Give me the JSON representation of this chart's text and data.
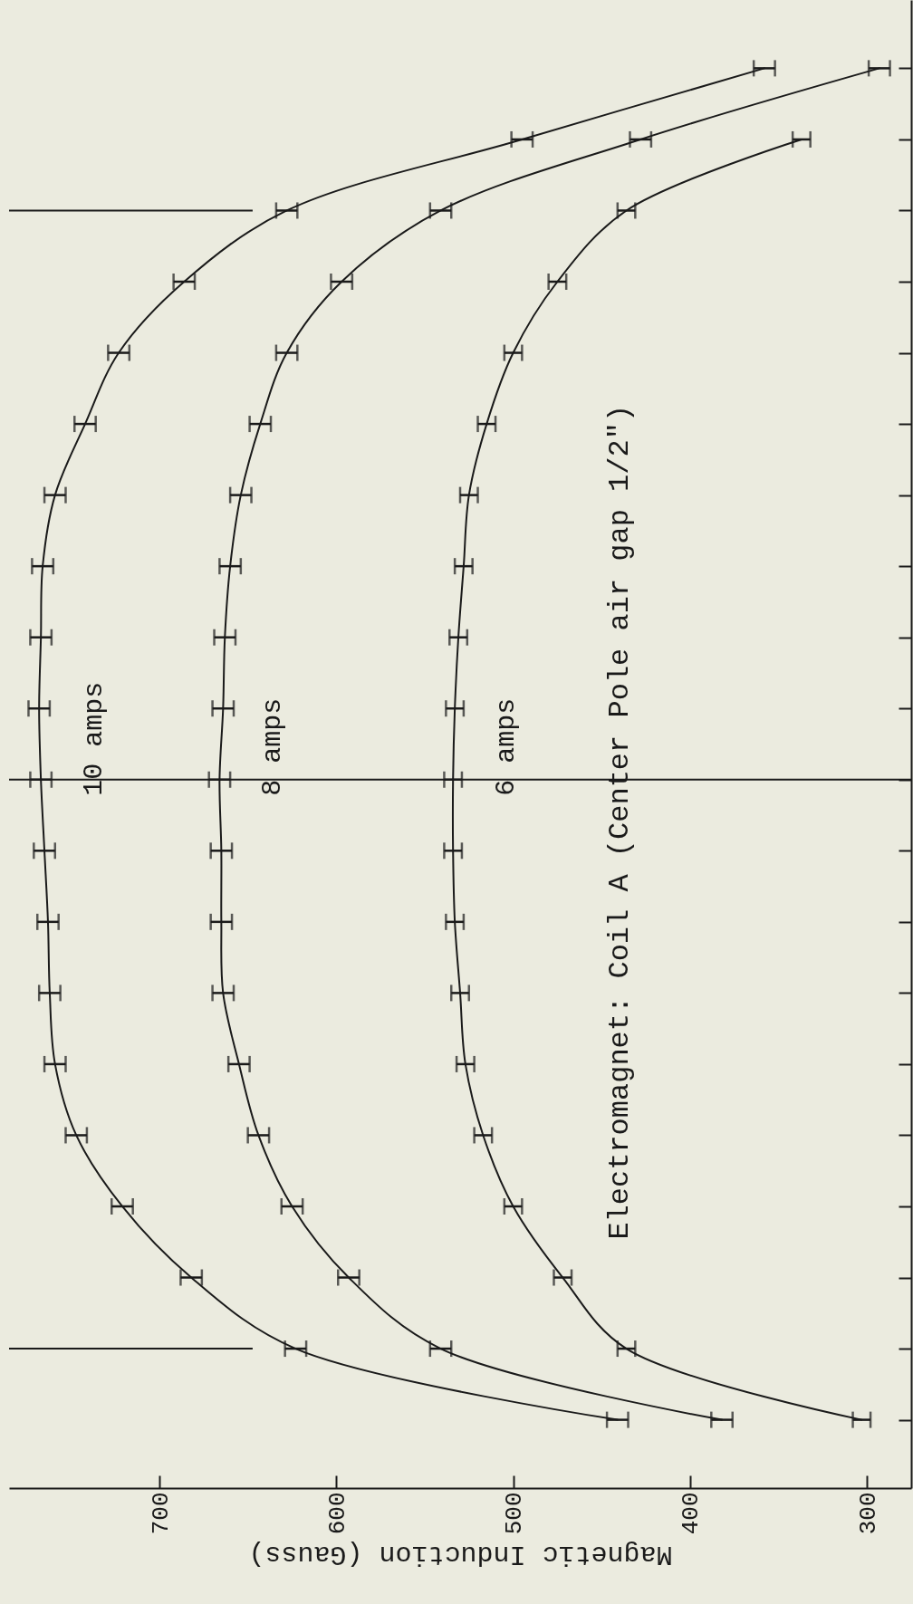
{
  "chart_data": {
    "type": "line",
    "orientation": "horizontal",
    "xlabel": "Magnetic Induction (Gauss)",
    "xlim": [
      785,
      275
    ],
    "xticks": [
      300,
      400,
      500,
      600,
      700
    ],
    "categories": [
      null,
      null,
      null,
      null,
      null,
      null,
      null,
      null,
      null,
      null,
      null,
      null,
      null,
      null,
      null,
      null,
      null,
      null,
      null,
      null
    ],
    "tick_labels": "x",
    "grid": false,
    "legend": false,
    "marker": "none",
    "line_style": "solid",
    "annotations": [
      "Electromagnet:  Coil A (Center Pole air gap 1/2\")"
    ],
    "series": [
      {
        "name": "10 amps",
        "color": "#1a1a1a",
        "values": [
          358,
          495,
          628,
          686,
          723,
          742,
          759,
          766,
          767,
          768,
          767,
          765,
          763,
          762,
          759,
          747,
          721,
          682,
          623,
          441
        ],
        "errors": [
          6,
          6,
          6,
          6,
          6,
          6,
          6,
          6,
          6,
          6,
          6,
          6,
          6,
          6,
          6,
          6,
          6,
          6,
          6,
          6
        ]
      },
      {
        "name": "8 amps",
        "color": "#1a1a1a",
        "values": [
          293,
          428,
          541,
          597,
          628,
          643,
          654,
          660,
          663,
          664,
          666,
          665,
          665,
          664,
          655,
          644,
          625,
          593,
          541,
          382
        ],
        "errors": [
          6,
          6,
          6,
          6,
          6,
          6,
          6,
          6,
          6,
          6,
          6,
          6,
          6,
          6,
          6,
          6,
          6,
          6,
          6,
          6
        ]
      },
      {
        "name": "6 amps",
        "color": "#1a1a1a",
        "values": [
          null,
          337,
          436,
          475,
          500,
          515,
          525,
          528,
          531,
          533,
          534,
          534,
          533,
          530,
          527,
          517,
          500,
          472,
          436,
          303
        ],
        "errors": [
          null,
          5,
          5,
          5,
          5,
          5,
          5,
          5,
          5,
          5,
          5,
          5,
          5,
          5,
          5,
          5,
          5,
          5,
          5,
          5
        ]
      }
    ]
  }
}
